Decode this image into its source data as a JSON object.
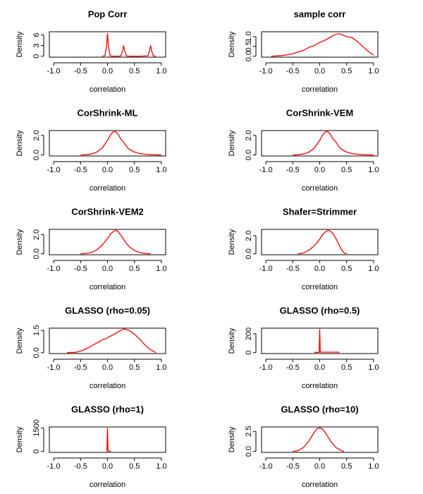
{
  "chart_data": [
    {
      "type": "line",
      "title": "Pop Corr",
      "xlabel": "correlation",
      "ylabel": "Density",
      "color": "#ff0000",
      "x": [
        -0.1,
        -0.05,
        -0.02,
        0,
        0.02,
        0.05,
        0.1,
        0.2,
        0.25,
        0.28,
        0.3,
        0.32,
        0.35,
        0.4,
        0.6,
        0.75,
        0.78,
        0.8,
        0.82,
        0.85,
        0.9
      ],
      "values": [
        0,
        0.1,
        2.5,
        6.5,
        2.5,
        0.1,
        0,
        0,
        0.1,
        1.5,
        3,
        1.5,
        0.1,
        0,
        0,
        0.1,
        1.5,
        3.1,
        1.5,
        0.1,
        0
      ],
      "xlim": [
        -1.08,
        1.08
      ],
      "xticks": [
        {
          "value": -1,
          "label": "-1.0"
        },
        {
          "value": -0.5,
          "label": "-0.5"
        },
        {
          "value": 0,
          "label": "0.0"
        },
        {
          "value": 0.5,
          "label": "0.5"
        },
        {
          "value": 1,
          "label": "1.0"
        }
      ],
      "ylim": [
        -0.27,
        6.9
      ],
      "yticks": [
        0,
        3,
        6
      ]
    },
    {
      "type": "line",
      "title": "sample corr",
      "xlabel": "correlation",
      "ylabel": "Density",
      "color": "#ff0000",
      "x": [
        -0.9,
        -0.7,
        -0.5,
        -0.3,
        -0.2,
        -0.1,
        0,
        0.1,
        0.2,
        0.3,
        0.35,
        0.4,
        0.5,
        0.6,
        0.7,
        0.8,
        0.9,
        1.0
      ],
      "values": [
        0,
        0.03,
        0.12,
        0.3,
        0.45,
        0.55,
        0.7,
        0.82,
        0.98,
        1.12,
        1.15,
        1.12,
        1.0,
        0.95,
        0.75,
        0.5,
        0.25,
        0.05
      ],
      "xlim": [
        -1.08,
        1.08
      ],
      "xticks": [
        {
          "value": -1,
          "label": "-1.0"
        },
        {
          "value": -0.5,
          "label": "-0.5"
        },
        {
          "value": 0,
          "label": "0.0"
        },
        {
          "value": 0.5,
          "label": "0.5"
        },
        {
          "value": 1,
          "label": "1.0"
        }
      ],
      "ylim": [
        -0.05,
        1.25
      ],
      "yticks": [
        {
          "value": 0,
          "label": "0.0"
        },
        {
          "value": 0.5,
          "label": "0.5"
        },
        {
          "value": 1,
          "label": "1.0"
        }
      ]
    },
    {
      "type": "line",
      "title": "CorShrink-ML",
      "xlabel": "correlation",
      "ylabel": "Density",
      "color": "#ff0000",
      "x": [
        -0.5,
        -0.4,
        -0.3,
        -0.2,
        -0.1,
        0,
        0.05,
        0.1,
        0.15,
        0.2,
        0.25,
        0.3,
        0.35,
        0.4,
        0.5,
        0.6,
        0.7,
        0.8,
        1.0
      ],
      "values": [
        0,
        0.03,
        0.1,
        0.3,
        0.7,
        1.5,
        2.0,
        2.35,
        2.4,
        2.1,
        1.6,
        1.3,
        0.9,
        0.6,
        0.3,
        0.15,
        0.08,
        0.03,
        0
      ],
      "xlim": [
        -1.08,
        1.08
      ],
      "xticks": [
        {
          "value": -1,
          "label": "-1.0"
        },
        {
          "value": -0.5,
          "label": "-0.5"
        },
        {
          "value": 0,
          "label": "0.0"
        },
        {
          "value": 0.5,
          "label": "0.5"
        },
        {
          "value": 1,
          "label": "1.0"
        }
      ],
      "ylim": [
        -0.1,
        2.5
      ],
      "yticks": [
        {
          "value": 0,
          "label": "0.0"
        },
        {
          "value": 2,
          "label": "2.0"
        }
      ]
    },
    {
      "type": "line",
      "title": "CorShrink-VEM",
      "xlabel": "correlation",
      "ylabel": "Density",
      "color": "#ff0000",
      "x": [
        -0.5,
        -0.4,
        -0.3,
        -0.2,
        -0.1,
        0,
        0.05,
        0.1,
        0.15,
        0.2,
        0.25,
        0.3,
        0.35,
        0.4,
        0.5,
        0.6,
        0.7,
        0.8,
        1.0
      ],
      "values": [
        0,
        0.03,
        0.1,
        0.3,
        0.7,
        1.5,
        2.0,
        2.35,
        2.4,
        2.1,
        1.6,
        1.35,
        0.9,
        0.6,
        0.3,
        0.15,
        0.08,
        0.03,
        0
      ],
      "xlim": [
        -1.08,
        1.08
      ],
      "xticks": [
        {
          "value": -1,
          "label": "-1.0"
        },
        {
          "value": -0.5,
          "label": "-0.5"
        },
        {
          "value": 0,
          "label": "0.0"
        },
        {
          "value": 0.5,
          "label": "0.5"
        },
        {
          "value": 1,
          "label": "1.0"
        }
      ],
      "ylim": [
        -0.1,
        2.5
      ],
      "yticks": [
        {
          "value": 0,
          "label": "0.0"
        },
        {
          "value": 2,
          "label": "2.0"
        }
      ]
    },
    {
      "type": "line",
      "title": "CorShrink-VEM2",
      "xlabel": "correlation",
      "ylabel": "Density",
      "color": "#ff0000",
      "x": [
        -0.5,
        -0.4,
        -0.3,
        -0.2,
        -0.1,
        0,
        0.05,
        0.1,
        0.15,
        0.2,
        0.25,
        0.3,
        0.35,
        0.4,
        0.5,
        0.6,
        0.7,
        0.8
      ],
      "values": [
        0,
        0.05,
        0.15,
        0.4,
        0.9,
        1.6,
        2.0,
        2.3,
        2.45,
        2.3,
        1.9,
        1.5,
        1.1,
        0.75,
        0.35,
        0.12,
        0.04,
        0
      ],
      "xlim": [
        -1.08,
        1.08
      ],
      "xticks": [
        {
          "value": -1,
          "label": "-1.0"
        },
        {
          "value": -0.5,
          "label": "-0.5"
        },
        {
          "value": 0,
          "label": "0.0"
        },
        {
          "value": 0.5,
          "label": "0.5"
        },
        {
          "value": 1,
          "label": "1.0"
        }
      ],
      "ylim": [
        -0.1,
        2.55
      ],
      "yticks": [
        {
          "value": 0,
          "label": "0.0"
        },
        {
          "value": 2,
          "label": "2.0"
        }
      ]
    },
    {
      "type": "line",
      "title": "Shafer=Strimmer",
      "xlabel": "correlation",
      "ylabel": "Density",
      "color": "#ff0000",
      "x": [
        -0.4,
        -0.3,
        -0.2,
        -0.1,
        0,
        0.05,
        0.1,
        0.15,
        0.2,
        0.25,
        0.3,
        0.35,
        0.4,
        0.45,
        0.5
      ],
      "values": [
        0,
        0.1,
        0.4,
        0.9,
        1.6,
        2.1,
        2.4,
        2.6,
        2.5,
        2.2,
        1.7,
        1.1,
        0.5,
        0.1,
        0
      ],
      "xlim": [
        -1.08,
        1.08
      ],
      "xticks": [
        {
          "value": -1,
          "label": "-1.0"
        },
        {
          "value": -0.5,
          "label": "-0.5"
        },
        {
          "value": 0,
          "label": "0.0"
        },
        {
          "value": 0.5,
          "label": "0.5"
        },
        {
          "value": 1,
          "label": "1.0"
        }
      ],
      "ylim": [
        -0.1,
        2.7
      ],
      "yticks": [
        {
          "value": 0,
          "label": "0.0"
        },
        {
          "value": 2,
          "label": "2.0"
        }
      ]
    },
    {
      "type": "line",
      "title": "GLASSO (rho=0.05)",
      "xlabel": "correlation",
      "ylabel": "Density",
      "color": "#ff0000",
      "x": [
        -0.75,
        -0.6,
        -0.5,
        -0.4,
        -0.3,
        -0.2,
        -0.1,
        0,
        0.1,
        0.2,
        0.3,
        0.4,
        0.5,
        0.6,
        0.7,
        0.8,
        0.9
      ],
      "values": [
        0,
        0.02,
        0.1,
        0.25,
        0.45,
        0.65,
        0.85,
        1.0,
        1.2,
        1.4,
        1.6,
        1.5,
        1.25,
        0.9,
        0.5,
        0.2,
        0
      ],
      "xlim": [
        -1.08,
        1.08
      ],
      "xticks": [
        {
          "value": -1,
          "label": "-1.0"
        },
        {
          "value": -0.5,
          "label": "-0.5"
        },
        {
          "value": 0,
          "label": "0.0"
        },
        {
          "value": 0.5,
          "label": "0.5"
        },
        {
          "value": 1,
          "label": "1.0"
        }
      ],
      "ylim": [
        -0.06,
        1.65
      ],
      "yticks": [
        {
          "value": 0,
          "label": "0.0"
        },
        {
          "value": 1.5,
          "label": "1.5"
        }
      ]
    },
    {
      "type": "line",
      "title": "GLASSO (rho=0.5)",
      "xlabel": "correlation",
      "ylabel": "Density",
      "color": "#ff0000",
      "x": [
        -0.1,
        -0.01,
        0,
        0.01,
        0.05,
        0.35,
        0.36
      ],
      "values": [
        3,
        3,
        250,
        5,
        5,
        5,
        0
      ],
      "xlim": [
        -1.08,
        1.08
      ],
      "xticks": [
        {
          "value": -1,
          "label": "-1.0"
        },
        {
          "value": -0.5,
          "label": "-0.5"
        },
        {
          "value": 0,
          "label": "0.0"
        },
        {
          "value": 0.5,
          "label": "0.5"
        },
        {
          "value": 1,
          "label": "1.0"
        }
      ],
      "ylim": [
        -10,
        260
      ],
      "yticks": [
        0,
        200
      ]
    },
    {
      "type": "line",
      "title": "GLASSO (rho=1)",
      "xlabel": "correlation",
      "ylabel": "Density",
      "color": "#ff0000",
      "x": [
        -0.01,
        0,
        0.01,
        0.05,
        0.06
      ],
      "values": [
        0,
        1500,
        20,
        20,
        0
      ],
      "xlim": [
        -1.08,
        1.08
      ],
      "xticks": [
        {
          "value": -1,
          "label": "-1.0"
        },
        {
          "value": -0.5,
          "label": "-0.5"
        },
        {
          "value": 0,
          "label": "0.0"
        },
        {
          "value": 0.5,
          "label": "0.5"
        },
        {
          "value": 1,
          "label": "1.0"
        }
      ],
      "ylim": [
        -60,
        1560
      ],
      "yticks": [
        0,
        1500
      ]
    },
    {
      "type": "line",
      "title": "GLASSO (rho=10)",
      "xlabel": "correlation",
      "ylabel": "Density",
      "color": "#ff0000",
      "x": [
        -0.5,
        -0.4,
        -0.3,
        -0.2,
        -0.1,
        -0.05,
        0,
        0.05,
        0.1,
        0.2,
        0.3,
        0.4,
        0.45
      ],
      "values": [
        0,
        0.1,
        0.5,
        1.3,
        2.4,
        2.8,
        2.95,
        2.8,
        2.4,
        1.3,
        0.5,
        0.1,
        0
      ],
      "xlim": [
        -1.08,
        1.08
      ],
      "xticks": [
        {
          "value": -1,
          "label": "-1.0"
        },
        {
          "value": -0.5,
          "label": "-0.5"
        },
        {
          "value": 0,
          "label": "0.0"
        },
        {
          "value": 0.5,
          "label": "0.5"
        },
        {
          "value": 1,
          "label": "1.0"
        }
      ],
      "ylim": [
        -0.12,
        3.05
      ],
      "yticks": [
        {
          "value": 0,
          "label": "0.0"
        },
        {
          "value": 2.5,
          "label": "2.5"
        }
      ]
    }
  ]
}
